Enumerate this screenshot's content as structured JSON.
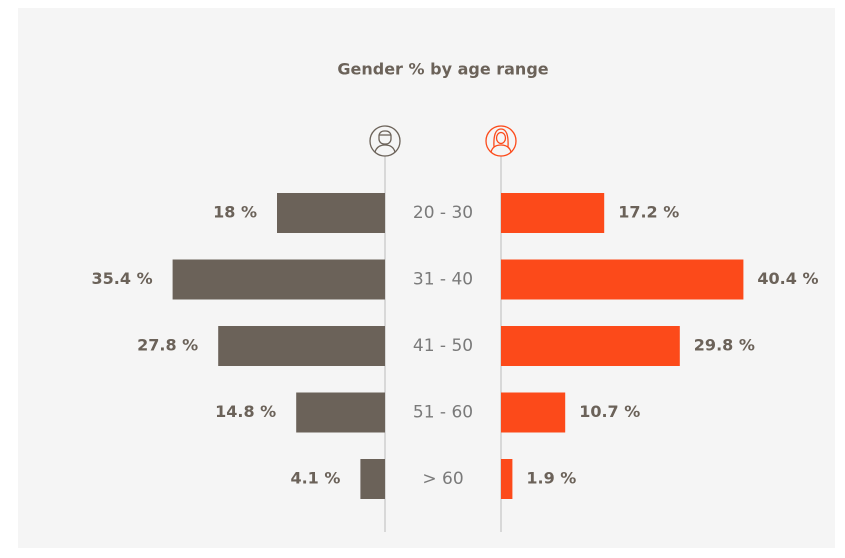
{
  "chart_data": {
    "type": "butterfly",
    "title": "Gender % by age range",
    "categories": [
      "20 - 30",
      "31 - 40",
      "41 - 50",
      "51 - 60",
      "> 60"
    ],
    "series": [
      {
        "color": "#6b6259",
        "values": [
          18,
          35.4,
          27.8,
          14.8,
          4.1
        ],
        "value_labels": [
          "18 %",
          "35.4 %",
          "27.8 %",
          "14.8 %",
          "4.1 %"
        ]
      },
      {
        "color": "#fc4a1a",
        "values": [
          17.2,
          40.4,
          29.8,
          10.7,
          1.9
        ],
        "value_labels": [
          "17.2 %",
          "40.4 %",
          "29.8 %",
          "10.7 %",
          "1.9 %"
        ]
      }
    ]
  }
}
